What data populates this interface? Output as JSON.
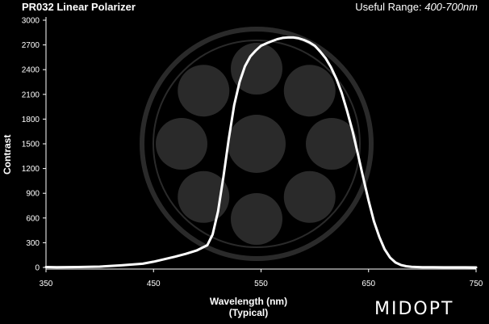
{
  "header": {
    "title": "PR032 Linear Polarizer",
    "range_label": "Useful Range:",
    "range_value": "400-700nm"
  },
  "brand": {
    "logo_text": "MIDOPT"
  },
  "colors": {
    "background": "#000000",
    "curve": "#ffffff",
    "watermark": "#2a2a2a",
    "axis": "#ffffff"
  },
  "chart_data": {
    "type": "line",
    "title": "PR032 Linear Polarizer",
    "xlabel": "Wavelength (nm)",
    "xlabel_sub": "(Typical)",
    "ylabel": "Contrast",
    "xlim": [
      350,
      750
    ],
    "ylim": [
      0,
      3000
    ],
    "xticks": [
      350,
      450,
      550,
      650,
      750
    ],
    "yticks": [
      0,
      300,
      600,
      900,
      1200,
      1500,
      1800,
      2100,
      2400,
      2700,
      3000
    ],
    "grid": false,
    "series": [
      {
        "x": [
          350,
          360,
          380,
          400,
          420,
          440,
          450,
          460,
          470,
          480,
          490,
          500,
          505,
          510,
          515,
          520,
          525,
          530,
          535,
          540,
          545,
          550,
          555,
          560,
          565,
          570,
          575,
          580,
          585,
          590,
          595,
          600,
          605,
          610,
          615,
          620,
          625,
          630,
          635,
          640,
          645,
          650,
          655,
          660,
          665,
          670,
          675,
          680,
          685,
          690,
          695,
          700,
          710,
          720,
          730,
          740,
          750
        ],
        "y": [
          5,
          3,
          5,
          10,
          25,
          45,
          70,
          100,
          130,
          165,
          205,
          270,
          400,
          680,
          1100,
          1560,
          1970,
          2250,
          2440,
          2560,
          2630,
          2690,
          2720,
          2745,
          2770,
          2785,
          2790,
          2790,
          2780,
          2760,
          2730,
          2690,
          2620,
          2540,
          2430,
          2290,
          2120,
          1900,
          1660,
          1380,
          1090,
          810,
          560,
          370,
          220,
          120,
          60,
          30,
          15,
          8,
          5,
          3,
          2,
          1,
          1,
          1,
          0
        ]
      }
    ]
  },
  "axis_labels": {
    "x_main": "Wavelength (nm)",
    "x_sub": "(Typical)",
    "y": "Contrast"
  }
}
